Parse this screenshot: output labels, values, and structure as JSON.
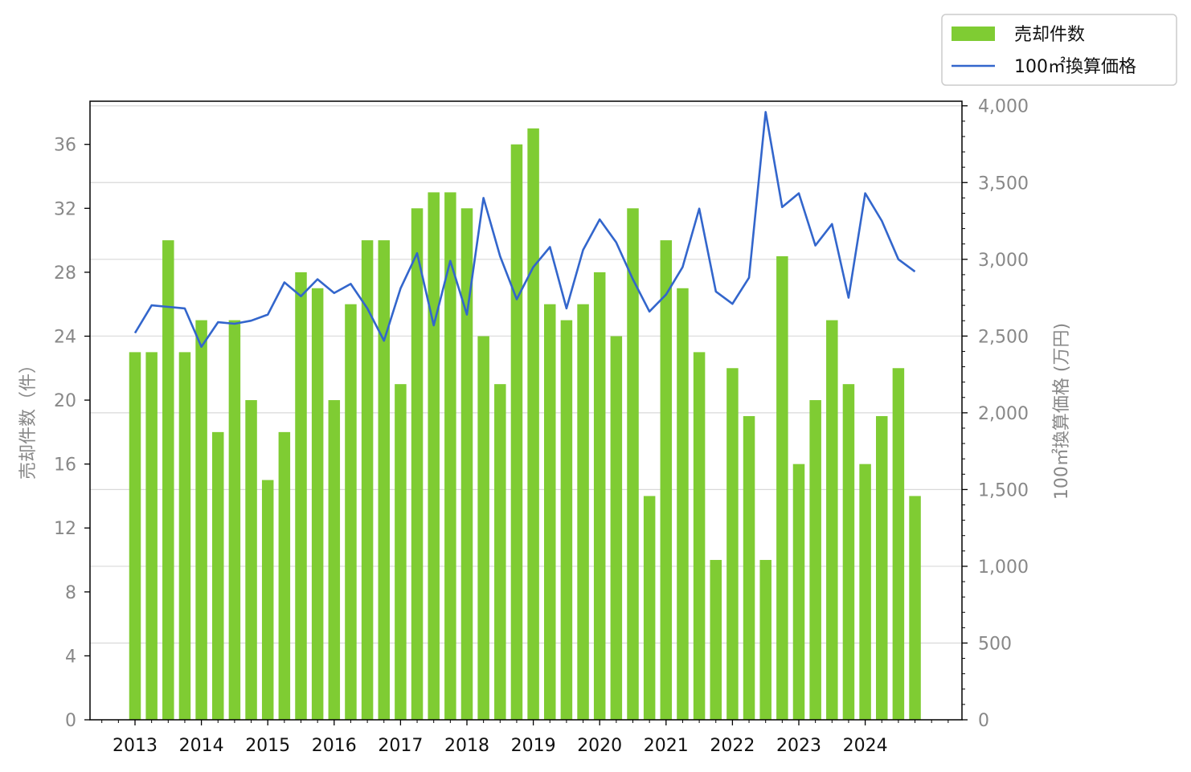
{
  "chart_data": {
    "type": "bar+line",
    "title": "",
    "x_tick_labels": [
      "2013",
      "2014",
      "2015",
      "2016",
      "2017",
      "2018",
      "2019",
      "2020",
      "2021",
      "2022",
      "2023",
      "2024"
    ],
    "left_axis": {
      "label": "売却件数（件）",
      "ylim": [
        0,
        38.7
      ],
      "ticks": [
        0,
        4,
        8,
        12,
        16,
        20,
        24,
        28,
        32,
        36
      ]
    },
    "right_axis": {
      "label": "100㎡換算価格 (万円)",
      "ylim": [
        0,
        4030
      ],
      "ticks": [
        0,
        500,
        1000,
        1500,
        2000,
        2500,
        3000,
        3500,
        4000
      ],
      "tick_labels": [
        "0",
        "500",
        "1,000",
        "1,500",
        "2,000",
        "2,500",
        "3,000",
        "3,500",
        "4,000"
      ]
    },
    "grid": "horizontal, right axis",
    "legend": {
      "position": "top-right, outside plot",
      "entries": [
        "売却件数",
        "100㎡換算価格"
      ]
    },
    "colors": {
      "bar": "#7fcc33",
      "line": "#3366cc",
      "grid": "#d9d9d9",
      "axis": "#000000"
    },
    "series": [
      {
        "name": "売却件数",
        "kind": "bar",
        "axis": "left",
        "values": [
          23,
          23,
          30,
          23,
          25,
          18,
          25,
          20,
          15,
          18,
          28,
          27,
          20,
          26,
          30,
          30,
          21,
          32,
          33,
          33,
          32,
          24,
          21,
          36,
          37,
          26,
          25,
          26,
          28,
          24,
          32,
          14,
          30,
          27,
          23,
          10,
          22,
          19,
          10,
          29,
          16,
          20,
          25,
          21,
          16,
          19,
          22,
          14
        ]
      },
      {
        "name": "100㎡換算価格",
        "kind": "line",
        "axis": "right",
        "values": [
          2520,
          2700,
          2690,
          2680,
          2430,
          2590,
          2580,
          2600,
          2640,
          2850,
          2760,
          2870,
          2780,
          2840,
          2680,
          2470,
          2810,
          3040,
          2570,
          2990,
          2640,
          3400,
          3020,
          2740,
          2950,
          3080,
          2680,
          3060,
          3260,
          3110,
          2870,
          2660,
          2770,
          2950,
          3330,
          2790,
          2710,
          2880,
          3960,
          3340,
          3430,
          3090,
          3230,
          2750,
          3430,
          3250,
          3000,
          2920
        ]
      }
    ]
  }
}
